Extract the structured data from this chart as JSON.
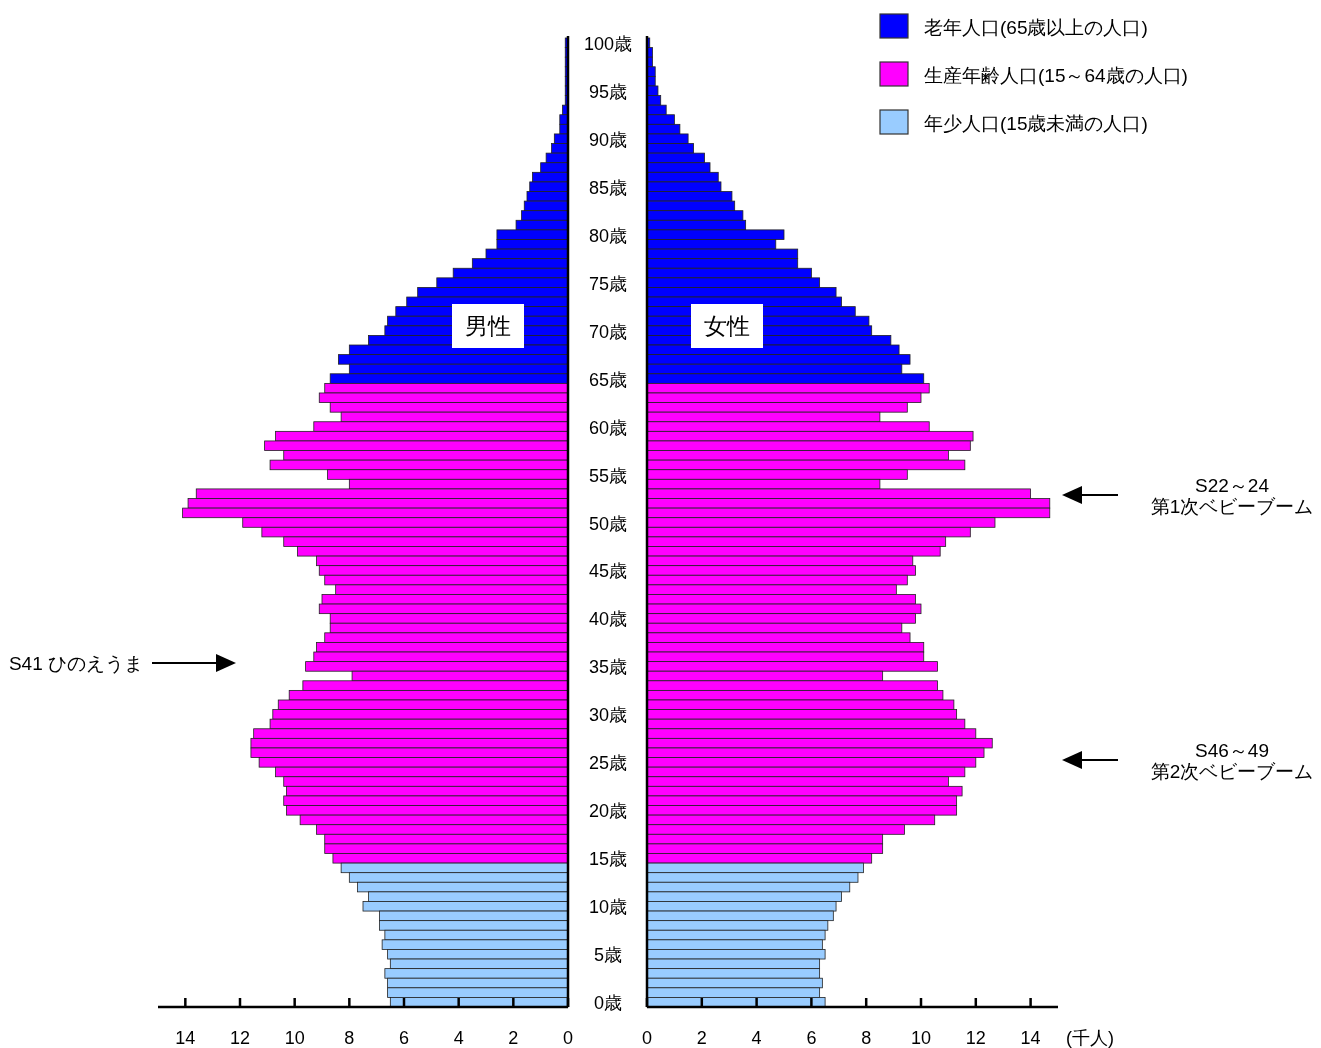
{
  "chart_data": [
    {
      "type": "bar",
      "orientation": "horizontal",
      "categories": [
        "100歳",
        null,
        null,
        null,
        null,
        "95歳",
        null,
        null,
        null,
        null,
        "90歳",
        null,
        null,
        null,
        null,
        "85歳",
        null,
        null,
        null,
        null,
        "80歳",
        null,
        null,
        null,
        null,
        "75歳",
        null,
        null,
        null,
        null,
        "70歳",
        null,
        null,
        null,
        null,
        "65歳",
        null,
        null,
        null,
        null,
        "60歳",
        null,
        null,
        null,
        null,
        "55歳",
        null,
        null,
        null,
        null,
        "50歳",
        null,
        null,
        null,
        null,
        "45歳",
        null,
        null,
        null,
        null,
        "40歳",
        null,
        null,
        null,
        null,
        "35歳",
        null,
        null,
        null,
        null,
        "30歳",
        null,
        null,
        null,
        null,
        "25歳",
        null,
        null,
        null,
        null,
        "20歳",
        null,
        null,
        null,
        null,
        "15歳",
        null,
        null,
        null,
        null,
        "10歳",
        null,
        null,
        null,
        null,
        "5歳",
        null,
        null,
        null,
        null,
        "0歳"
      ],
      "series": [
        {
          "color": "#0000ff",
          "values": [
            0.1,
            0.1,
            0.1,
            0.1,
            0.1,
            0.1,
            0.1,
            0.2,
            0.3,
            0.3,
            0.5,
            0.6,
            0.8,
            1.0,
            1.3,
            1.4,
            1.5,
            1.6,
            1.7,
            1.9,
            2.6,
            2.6,
            3.0,
            3.5,
            4.2,
            4.8,
            5.5,
            5.9,
            6.3,
            6.6,
            6.7,
            7.3,
            8.0,
            8.4,
            8.0,
            8.7,
            null,
            null,
            null,
            null,
            null,
            null,
            null,
            null,
            null,
            null,
            null,
            null,
            null,
            null,
            null,
            null,
            null,
            null,
            null,
            null,
            null,
            null,
            null,
            null,
            null,
            null,
            null,
            null,
            null,
            null,
            null,
            null,
            null,
            null,
            null,
            null,
            null,
            null,
            null,
            null,
            null,
            null,
            null,
            null,
            null,
            null,
            null,
            null,
            null,
            null,
            null,
            null,
            null,
            null,
            null,
            null,
            null,
            null,
            null,
            null,
            null,
            null,
            null,
            null,
            null
          ]
        },
        {
          "color": "#ff00ff",
          "values": [
            null,
            null,
            null,
            null,
            null,
            null,
            null,
            null,
            null,
            null,
            null,
            null,
            null,
            null,
            null,
            null,
            null,
            null,
            null,
            null,
            null,
            null,
            null,
            null,
            null,
            null,
            null,
            null,
            null,
            null,
            null,
            null,
            null,
            null,
            null,
            null,
            8.9,
            9.1,
            8.7,
            8.3,
            9.3,
            10.7,
            11.1,
            10.4,
            10.9,
            8.8,
            8.0,
            13.6,
            13.9,
            14.1,
            11.9,
            11.2,
            10.4,
            9.9,
            9.2,
            9.1,
            8.9,
            8.5,
            9.0,
            9.1,
            8.7,
            8.7,
            8.9,
            9.2,
            9.3,
            9.6,
            7.9,
            9.7,
            10.2,
            10.6,
            10.8,
            10.9,
            11.5,
            11.6,
            11.6,
            11.3,
            10.7,
            10.4,
            10.3,
            10.4,
            10.3,
            9.8,
            9.2,
            8.9,
            8.9,
            8.6,
            null,
            null,
            null,
            null,
            null,
            null,
            null,
            null,
            null,
            null,
            null,
            null,
            null,
            null,
            null
          ]
        },
        {
          "color": "#99ccff",
          "values": [
            null,
            null,
            null,
            null,
            null,
            null,
            null,
            null,
            null,
            null,
            null,
            null,
            null,
            null,
            null,
            null,
            null,
            null,
            null,
            null,
            null,
            null,
            null,
            null,
            null,
            null,
            null,
            null,
            null,
            null,
            null,
            null,
            null,
            null,
            null,
            null,
            null,
            null,
            null,
            null,
            null,
            null,
            null,
            null,
            null,
            null,
            null,
            null,
            null,
            null,
            null,
            null,
            null,
            null,
            null,
            null,
            null,
            null,
            null,
            null,
            null,
            null,
            null,
            null,
            null,
            null,
            null,
            null,
            null,
            null,
            null,
            null,
            null,
            null,
            null,
            null,
            null,
            null,
            null,
            null,
            null,
            null,
            null,
            null,
            null,
            null,
            8.3,
            8.0,
            7.7,
            7.3,
            7.5,
            6.9,
            6.9,
            6.7,
            6.8,
            6.6,
            6.5,
            6.7,
            6.6,
            6.6,
            6.5
          ]
        }
      ],
      "xlim": [
        15,
        0
      ],
      "xticks": [
        14,
        12,
        10,
        8,
        6,
        4,
        2,
        0
      ],
      "annotations": [
        "男性",
        "S41 ひのえうま"
      ]
    },
    {
      "type": "bar",
      "orientation": "horizontal",
      "legend": "top right",
      "categories": [
        null,
        null,
        null,
        null,
        null,
        null,
        null,
        null,
        null,
        null,
        null,
        null,
        null,
        null,
        null,
        null,
        null,
        null,
        null,
        null,
        null,
        null,
        null,
        null,
        null,
        null,
        null,
        null,
        null,
        null,
        null,
        null,
        null,
        null,
        null,
        null,
        null,
        null,
        null,
        null,
        null,
        null,
        null,
        null,
        null,
        null,
        null,
        null,
        null,
        null,
        null,
        null,
        null,
        null,
        null,
        null,
        null,
        null,
        null,
        null,
        null,
        null,
        null,
        null,
        null,
        null,
        null,
        null,
        null,
        null,
        null,
        null,
        null,
        null,
        null,
        null,
        null,
        null,
        null,
        null,
        null,
        null,
        null,
        null,
        null,
        null,
        null,
        null,
        null,
        null,
        null,
        null,
        null,
        null,
        null,
        null,
        null,
        null,
        null,
        null,
        null
      ],
      "series": [
        {
          "name": "老年人口(65歳以上の人口)",
          "color": "#0000ff",
          "values": [
            0.1,
            0.2,
            0.2,
            0.3,
            0.3,
            0.4,
            0.5,
            0.7,
            1.0,
            1.2,
            1.5,
            1.7,
            2.1,
            2.3,
            2.6,
            2.7,
            3.1,
            3.2,
            3.5,
            3.6,
            5.0,
            4.7,
            5.5,
            5.5,
            6.0,
            6.3,
            6.9,
            7.1,
            7.6,
            8.1,
            8.2,
            8.9,
            9.2,
            9.6,
            9.3,
            10.1,
            null,
            null,
            null,
            null,
            null,
            null,
            null,
            null,
            null,
            null,
            null,
            null,
            null,
            null,
            null,
            null,
            null,
            null,
            null,
            null,
            null,
            null,
            null,
            null,
            null,
            null,
            null,
            null,
            null,
            null,
            null,
            null,
            null,
            null,
            null,
            null,
            null,
            null,
            null,
            null,
            null,
            null,
            null,
            null,
            null,
            null,
            null,
            null,
            null,
            null,
            null,
            null,
            null,
            null,
            null,
            null,
            null,
            null,
            null,
            null,
            null,
            null,
            null,
            null,
            null
          ]
        },
        {
          "name": "生産年齢人口(15～64歳の人口)",
          "color": "#ff00ff",
          "values": [
            null,
            null,
            null,
            null,
            null,
            null,
            null,
            null,
            null,
            null,
            null,
            null,
            null,
            null,
            null,
            null,
            null,
            null,
            null,
            null,
            null,
            null,
            null,
            null,
            null,
            null,
            null,
            null,
            null,
            null,
            null,
            null,
            null,
            null,
            null,
            null,
            10.3,
            10.0,
            9.5,
            8.5,
            10.3,
            11.9,
            11.8,
            11.0,
            11.6,
            9.5,
            8.5,
            14.0,
            14.7,
            14.7,
            12.7,
            11.8,
            10.9,
            10.7,
            9.7,
            9.8,
            9.5,
            9.1,
            9.8,
            10.0,
            9.8,
            9.3,
            9.6,
            10.1,
            10.1,
            10.6,
            8.6,
            10.6,
            10.8,
            11.2,
            11.3,
            11.6,
            12.0,
            12.6,
            12.3,
            12.0,
            11.6,
            11.0,
            11.5,
            11.3,
            11.3,
            10.5,
            9.4,
            8.6,
            8.6,
            8.2,
            null,
            null,
            null,
            null,
            null,
            null,
            null,
            null,
            null,
            null,
            null,
            null,
            null,
            null,
            null
          ]
        },
        {
          "name": "年少人口(15歳未満の人口)",
          "color": "#99ccff",
          "values": [
            null,
            null,
            null,
            null,
            null,
            null,
            null,
            null,
            null,
            null,
            null,
            null,
            null,
            null,
            null,
            null,
            null,
            null,
            null,
            null,
            null,
            null,
            null,
            null,
            null,
            null,
            null,
            null,
            null,
            null,
            null,
            null,
            null,
            null,
            null,
            null,
            null,
            null,
            null,
            null,
            null,
            null,
            null,
            null,
            null,
            null,
            null,
            null,
            null,
            null,
            null,
            null,
            null,
            null,
            null,
            null,
            null,
            null,
            null,
            null,
            null,
            null,
            null,
            null,
            null,
            null,
            null,
            null,
            null,
            null,
            null,
            null,
            null,
            null,
            null,
            null,
            null,
            null,
            null,
            null,
            null,
            null,
            null,
            null,
            null,
            null,
            7.9,
            7.7,
            7.4,
            7.1,
            6.9,
            6.8,
            6.6,
            6.5,
            6.4,
            6.5,
            6.3,
            6.3,
            6.4,
            6.3,
            6.5
          ]
        }
      ],
      "xlim": [
        0,
        15
      ],
      "xticks": [
        0,
        2,
        4,
        6,
        8,
        10,
        12,
        14
      ],
      "xlabel": "(千人)",
      "annotations": [
        "女性",
        "S22～24\n第1次ベビーブーム",
        "S46～49\n第2次ベビーブーム"
      ]
    }
  ]
}
